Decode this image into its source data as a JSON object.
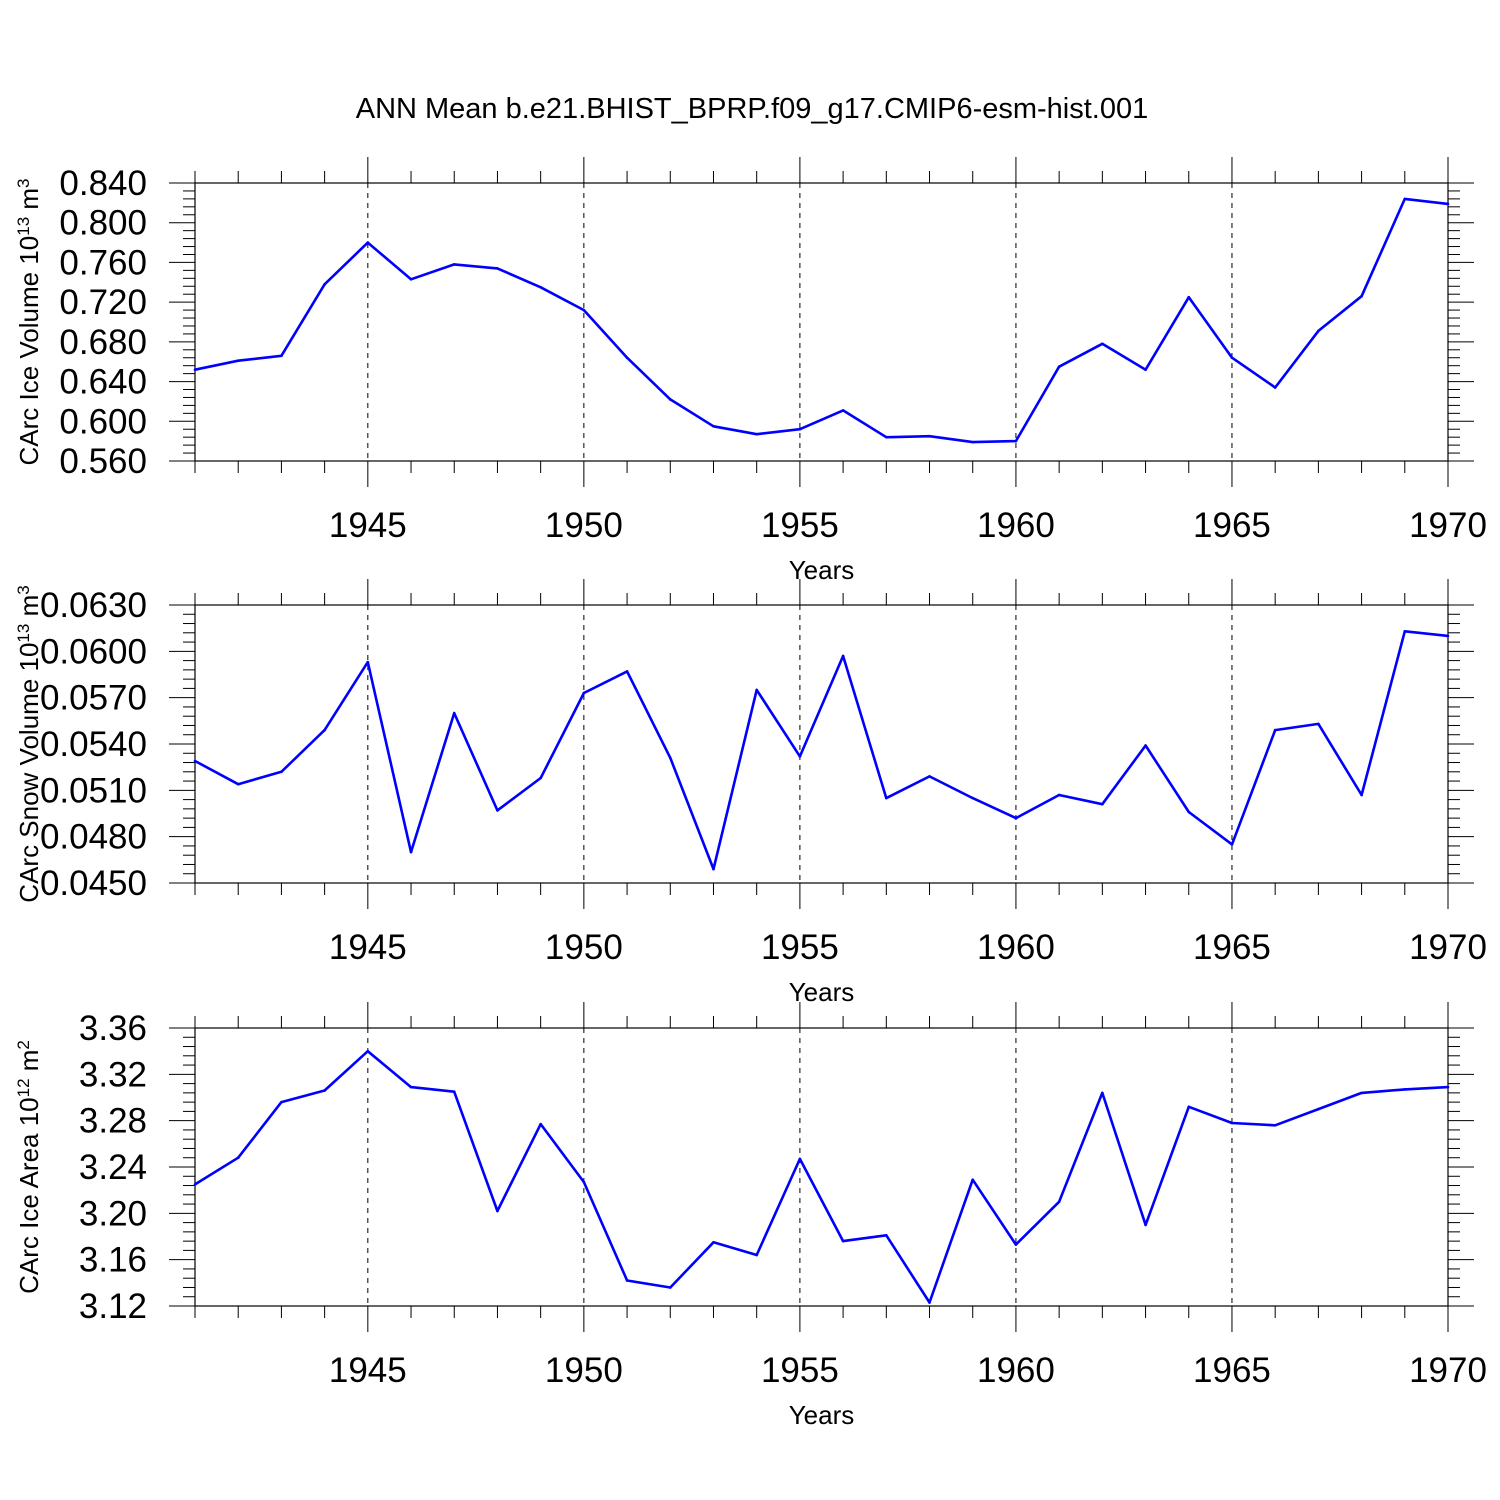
{
  "chart_data": [
    {
      "type": "line",
      "title": "ANN Mean b.e21.BHIST_BPRP.f09_g17.CMIP6-esm-hist.001",
      "ylabel": {
        "main": "CArc Ice Volume 10",
        "exp": "13",
        "unit": " m",
        "unit_exp": "3"
      },
      "xlabel": "Years",
      "xlim": [
        1941,
        1970
      ],
      "ylim": [
        0.56,
        0.84
      ],
      "yticks": [
        0.56,
        0.6,
        0.64,
        0.68,
        0.72,
        0.76,
        0.8,
        0.84
      ],
      "ytick_labels": [
        "0.560",
        "0.600",
        "0.640",
        "0.680",
        "0.720",
        "0.760",
        "0.800",
        "0.840"
      ],
      "xticks": [
        1945,
        1950,
        1955,
        1960,
        1965,
        1970
      ],
      "xtick_labels": [
        "1945",
        "1950",
        "1955",
        "1960",
        "1965",
        "1970"
      ],
      "grid": "vertical dashed at major x ticks",
      "color": "#0000ff",
      "x": [
        1941,
        1942,
        1943,
        1944,
        1945,
        1946,
        1947,
        1948,
        1949,
        1950,
        1951,
        1952,
        1953,
        1954,
        1955,
        1956,
        1957,
        1958,
        1959,
        1960,
        1961,
        1962,
        1963,
        1964,
        1965,
        1966,
        1967,
        1968,
        1969,
        1970
      ],
      "values": [
        0.652,
        0.661,
        0.666,
        0.738,
        0.78,
        0.743,
        0.758,
        0.754,
        0.735,
        0.712,
        0.664,
        0.622,
        0.595,
        0.587,
        0.592,
        0.611,
        0.584,
        0.585,
        0.579,
        0.58,
        0.655,
        0.678,
        0.652,
        0.725,
        0.664,
        0.634,
        0.691,
        0.726,
        0.824,
        0.819
      ]
    },
    {
      "type": "line",
      "ylabel": {
        "main": "CArc Snow Volume 10",
        "exp": "13",
        "unit": " m",
        "unit_exp": "3"
      },
      "xlabel": "Years",
      "xlim": [
        1941,
        1970
      ],
      "ylim": [
        0.045,
        0.063
      ],
      "yticks": [
        0.045,
        0.048,
        0.051,
        0.054,
        0.057,
        0.06,
        0.063
      ],
      "ytick_labels": [
        "0.0450",
        "0.0480",
        "0.0510",
        "0.0540",
        "0.0570",
        "0.0600",
        "0.0630"
      ],
      "xticks": [
        1945,
        1950,
        1955,
        1960,
        1965,
        1970
      ],
      "xtick_labels": [
        "1945",
        "1950",
        "1955",
        "1960",
        "1965",
        "1970"
      ],
      "grid": "vertical dashed at major x ticks",
      "color": "#0000ff",
      "x": [
        1941,
        1942,
        1943,
        1944,
        1945,
        1946,
        1947,
        1948,
        1949,
        1950,
        1951,
        1952,
        1953,
        1954,
        1955,
        1956,
        1957,
        1958,
        1959,
        1960,
        1961,
        1962,
        1963,
        1964,
        1965,
        1966,
        1967,
        1968,
        1969,
        1970
      ],
      "values": [
        0.0529,
        0.0514,
        0.0522,
        0.0549,
        0.0593,
        0.047,
        0.056,
        0.0497,
        0.0518,
        0.0573,
        0.0587,
        0.0531,
        0.0459,
        0.0575,
        0.0532,
        0.0597,
        0.0505,
        0.0519,
        0.0505,
        0.0492,
        0.0507,
        0.0501,
        0.0539,
        0.0496,
        0.0475,
        0.0549,
        0.0553,
        0.0507,
        0.0613,
        0.061
      ]
    },
    {
      "type": "line",
      "ylabel": {
        "main": "CArc Ice Area 10",
        "exp": "12",
        "unit": " m",
        "unit_exp": "2"
      },
      "xlabel": "Years",
      "xlim": [
        1941,
        1970
      ],
      "ylim": [
        3.12,
        3.36
      ],
      "yticks": [
        3.12,
        3.16,
        3.2,
        3.24,
        3.28,
        3.32,
        3.36
      ],
      "ytick_labels": [
        "3.12",
        "3.16",
        "3.20",
        "3.24",
        "3.28",
        "3.32",
        "3.36"
      ],
      "xticks": [
        1945,
        1950,
        1955,
        1960,
        1965,
        1970
      ],
      "xtick_labels": [
        "1945",
        "1950",
        "1955",
        "1960",
        "1965",
        "1970"
      ],
      "grid": "vertical dashed at major x ticks",
      "color": "#0000ff",
      "x": [
        1941,
        1942,
        1943,
        1944,
        1945,
        1946,
        1947,
        1948,
        1949,
        1950,
        1951,
        1952,
        1953,
        1954,
        1955,
        1956,
        1957,
        1958,
        1959,
        1960,
        1961,
        1962,
        1963,
        1964,
        1965,
        1966,
        1967,
        1968,
        1969,
        1970
      ],
      "values": [
        3.225,
        3.248,
        3.296,
        3.306,
        3.34,
        3.309,
        3.305,
        3.202,
        3.277,
        3.227,
        3.142,
        3.136,
        3.175,
        3.164,
        3.247,
        3.176,
        3.181,
        3.123,
        3.229,
        3.173,
        3.21,
        3.304,
        3.19,
        3.292,
        3.278,
        3.276,
        3.29,
        3.304,
        3.307,
        3.309
      ]
    }
  ]
}
